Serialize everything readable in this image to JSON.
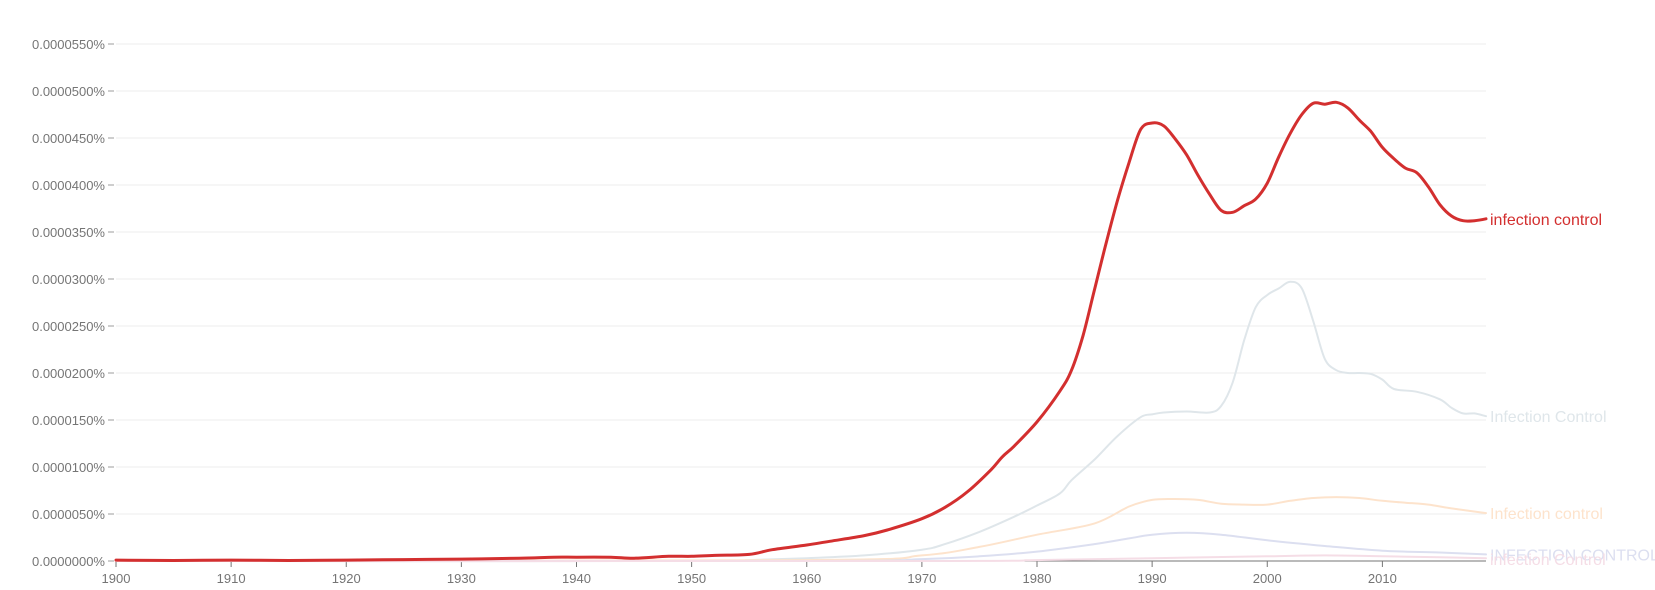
{
  "chart_data": {
    "type": "line",
    "xlim": [
      1900,
      2019
    ],
    "ylim": [
      0,
      5.5e-05
    ],
    "x_ticks": [
      1900,
      1910,
      1920,
      1930,
      1940,
      1950,
      1960,
      1970,
      1980,
      1990,
      2000,
      2010
    ],
    "y_ticks": [
      "0.0000000%",
      "0.0000050%",
      "0.0000100%",
      "0.0000150%",
      "0.0000200%",
      "0.0000250%",
      "0.0000300%",
      "0.0000350%",
      "0.0000400%",
      "0.0000450%",
      "0.0000500%",
      "0.0000550%"
    ],
    "grid": true,
    "series": [
      {
        "name": "infection control",
        "color": "#d32f2f",
        "emphasized": true,
        "x": [
          1900,
          1905,
          1910,
          1915,
          1920,
          1925,
          1930,
          1935,
          1938,
          1940,
          1943,
          1945,
          1948,
          1950,
          1952,
          1955,
          1957,
          1960,
          1962,
          1965,
          1967,
          1970,
          1972,
          1974,
          1976,
          1977,
          1978,
          1980,
          1982,
          1983,
          1984,
          1985,
          1986,
          1987,
          1988,
          1989,
          1990,
          1991,
          1992,
          1993,
          1994,
          1995,
          1996,
          1997,
          1998,
          1999,
          2000,
          2001,
          2002,
          2003,
          2004,
          2005,
          2006,
          2007,
          2008,
          2009,
          2010,
          2011,
          2012,
          2013,
          2014,
          2015,
          2016,
          2017,
          2018,
          2019
        ],
        "y": [
          1e-07,
          5e-08,
          1e-07,
          5e-08,
          1e-07,
          1.5e-07,
          2e-07,
          3e-07,
          4e-07,
          4e-07,
          4e-07,
          3e-07,
          5e-07,
          5e-07,
          6e-07,
          7e-07,
          1.2e-06,
          1.7e-06,
          2.1e-06,
          2.7e-06,
          3.3e-06,
          4.5e-06,
          5.7e-06,
          7.4e-06,
          9.7e-06,
          1.11e-05,
          1.22e-05,
          1.48e-05,
          1.81e-05,
          2.03e-05,
          2.4e-05,
          2.89e-05,
          3.38e-05,
          3.84e-05,
          4.24e-05,
          4.59e-05,
          4.66e-05,
          4.63e-05,
          4.49e-05,
          4.32e-05,
          4.1e-05,
          3.9e-05,
          3.73e-05,
          3.71e-05,
          3.78e-05,
          3.85e-05,
          4.02e-05,
          4.3e-05,
          4.55e-05,
          4.75e-05,
          4.87e-05,
          4.86e-05,
          4.88e-05,
          4.82e-05,
          4.69e-05,
          4.57e-05,
          4.4e-05,
          4.28e-05,
          4.18e-05,
          4.13e-05,
          3.98e-05,
          3.79e-05,
          3.67e-05,
          3.62e-05,
          3.62e-05,
          3.64e-05
        ]
      },
      {
        "name": "Infection Control",
        "color": "#dfe6ea",
        "emphasized": false,
        "x": [
          1900,
          1950,
          1955,
          1960,
          1965,
          1970,
          1972,
          1975,
          1978,
          1980,
          1982,
          1983,
          1985,
          1987,
          1989,
          1990,
          1991,
          1993,
          1995,
          1996,
          1997,
          1998,
          1999,
          2000,
          2001,
          2002,
          2003,
          2004,
          2005,
          2006,
          2007,
          2008,
          2009,
          2010,
          2011,
          2013,
          2015,
          2016,
          2017,
          2018,
          2019
        ],
        "y": [
          0,
          0,
          1e-07,
          3e-07,
          6e-07,
          1.2e-06,
          1.8e-06,
          3.1e-06,
          4.7e-06,
          5.9e-06,
          7.2e-06,
          8.6e-06,
          1.08e-05,
          1.33e-05,
          1.53e-05,
          1.56e-05,
          1.58e-05,
          1.59e-05,
          1.58e-05,
          1.65e-05,
          1.9e-05,
          2.35e-05,
          2.7e-05,
          2.83e-05,
          2.9e-05,
          2.97e-05,
          2.9e-05,
          2.55e-05,
          2.15e-05,
          2.03e-05,
          2e-05,
          2e-05,
          1.99e-05,
          1.93e-05,
          1.83e-05,
          1.8e-05,
          1.72e-05,
          1.63e-05,
          1.57e-05,
          1.57e-05,
          1.54e-05
        ]
      },
      {
        "name": "Infection control",
        "color": "#fde3cc",
        "emphasized": false,
        "x": [
          1900,
          1960,
          1970,
          1975,
          1980,
          1985,
          1988,
          1990,
          1992,
          1994,
          1996,
          1998,
          2000,
          2002,
          2004,
          2006,
          2008,
          2010,
          2012,
          2014,
          2016,
          2019
        ],
        "y": [
          0,
          1e-07,
          6e-07,
          1.5e-06,
          2.8e-06,
          4e-06,
          5.8e-06,
          6.5e-06,
          6.6e-06,
          6.5e-06,
          6.1e-06,
          6e-06,
          6e-06,
          6.4e-06,
          6.7e-06,
          6.8e-06,
          6.7e-06,
          6.4e-06,
          6.2e-06,
          6e-06,
          5.6e-06,
          5.1e-06
        ]
      },
      {
        "name": "INFECTION CONTROL",
        "color": "#dcdff0",
        "emphasized": false,
        "x": [
          1900,
          1960,
          1970,
          1975,
          1980,
          1985,
          1988,
          1990,
          1993,
          1996,
          2000,
          2005,
          2010,
          2015,
          2019
        ],
        "y": [
          0,
          0,
          2e-07,
          5e-07,
          1e-06,
          1.8e-06,
          2.4e-06,
          2.8e-06,
          3e-06,
          2.8e-06,
          2.2e-06,
          1.6e-06,
          1.1e-06,
          9e-07,
          7e-07
        ]
      },
      {
        "name": "infection Control",
        "color": "#f5dde6",
        "emphasized": false,
        "x": [
          1900,
          1970,
          1980,
          1990,
          2000,
          2005,
          2010,
          2015,
          2019
        ],
        "y": [
          0,
          0,
          1e-07,
          3e-07,
          5e-07,
          6e-07,
          5e-07,
          4e-07,
          3e-07
        ]
      }
    ]
  }
}
